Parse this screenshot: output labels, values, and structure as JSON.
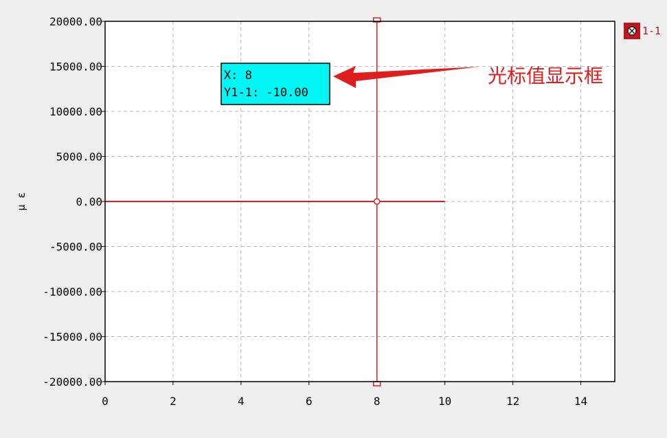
{
  "chart_data": {
    "type": "line",
    "x_ticks": [
      "0",
      "2",
      "4",
      "6",
      "8",
      "10",
      "12",
      "14"
    ],
    "y_ticks": [
      "20000.00",
      "15000.00",
      "10000.00",
      "5000.00",
      "0.00",
      "-5000.00",
      "-10000.00",
      "-15000.00",
      "-20000.00"
    ],
    "xlim": [
      0,
      15
    ],
    "ylim": [
      -20000,
      20000
    ],
    "ylabel": "μ ε",
    "grid": true,
    "legend": {
      "placement": "top-right",
      "label": "1-1",
      "color": "#c0151b"
    },
    "series": [
      {
        "name": "1-1",
        "color": "#d62020",
        "x": [
          0,
          10
        ],
        "y": [
          0,
          0
        ]
      }
    ],
    "cursor": {
      "x": 8,
      "y": 0,
      "color": "#d62020",
      "readout_x": "X: 8",
      "readout_y": "Y1-1: -10.00",
      "readout_bg": "#00f5f5"
    },
    "annotation": {
      "text": "光标值显示框",
      "color": "#e01d1d"
    }
  }
}
